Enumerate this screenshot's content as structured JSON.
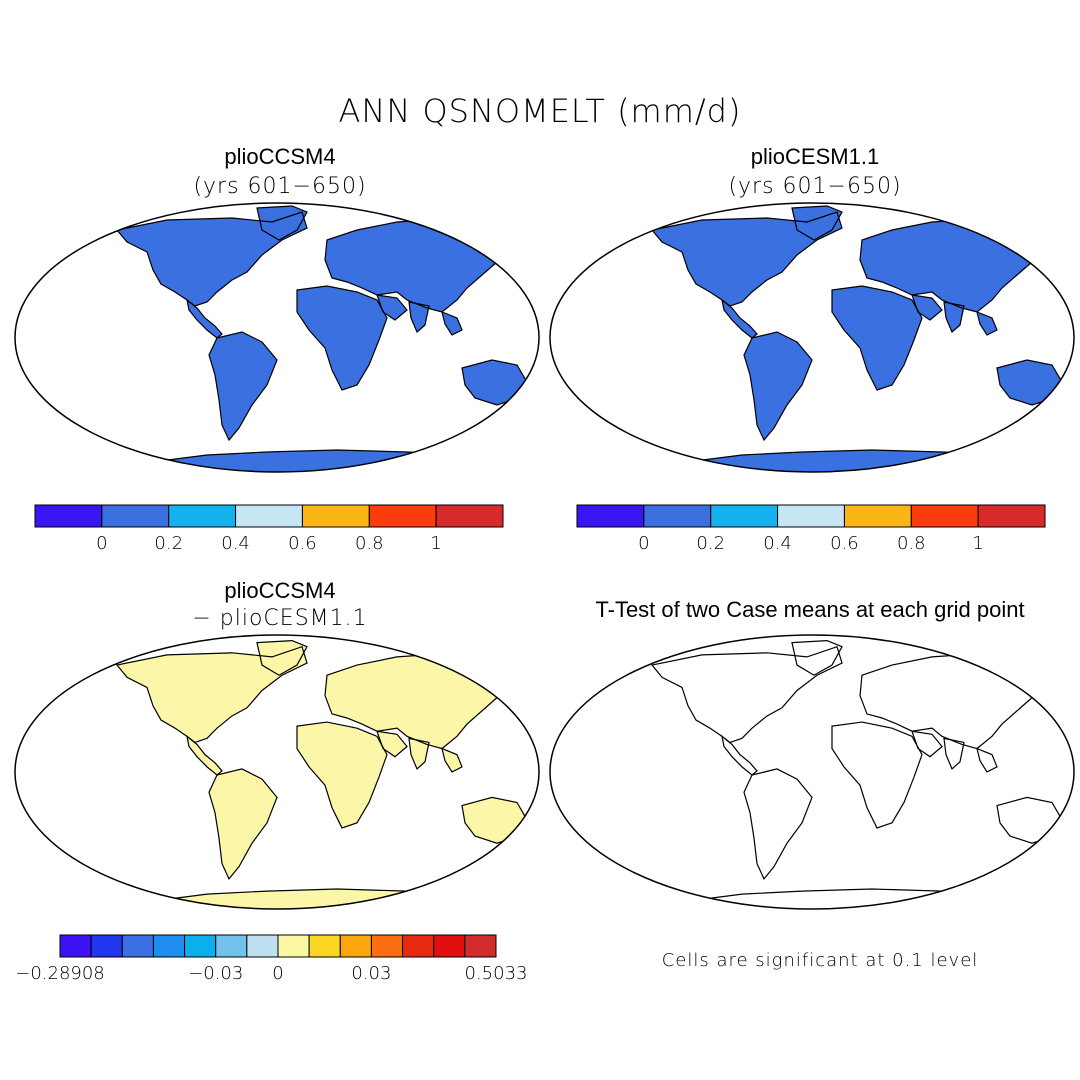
{
  "figure": {
    "title": "ANN QSNOMELT (mm/d)"
  },
  "panels": [
    {
      "title": "plioCCSM4",
      "subtitle": "(yrs 601−650)"
    },
    {
      "title": "plioCESM1.1",
      "subtitle": "(yrs 601−650)"
    },
    {
      "title": "plioCCSM4",
      "subtitle": "− plioCESM1.1"
    },
    {
      "title": "T-Test of two Case means at each grid point",
      "subtitle": ""
    }
  ],
  "colorbars": {
    "abs": {
      "colors": [
        "#3a16f4",
        "#3a6fe0",
        "#13b1ee",
        "#c6e6f4",
        "#fbb514",
        "#fc3c0c",
        "#d82a2a"
      ],
      "labels": [
        "0",
        "0.2",
        "0.4",
        "0.6",
        "0.8",
        "1"
      ]
    },
    "diff": {
      "colors": [
        "#3c12f2",
        "#2235ef",
        "#3a70e4",
        "#1d8ef0",
        "#0cb0ef",
        "#73c2ec",
        "#bfe0f2",
        "#fcf7a2",
        "#fbd623",
        "#fba60a",
        "#fb6d11",
        "#e72a10",
        "#e01010",
        "#d22b2b"
      ],
      "labels": [
        "−0.28908",
        "−0.03",
        "0",
        "0.03",
        "0.5033"
      ]
    }
  },
  "significance_note": "Cells are significant at 0.1 level",
  "legend_colors": {
    "ocean": "#ffffff",
    "land_base": "#3a70e0",
    "diff_land_base": "#fcf7a8",
    "significant": "#ff1a1a"
  }
}
